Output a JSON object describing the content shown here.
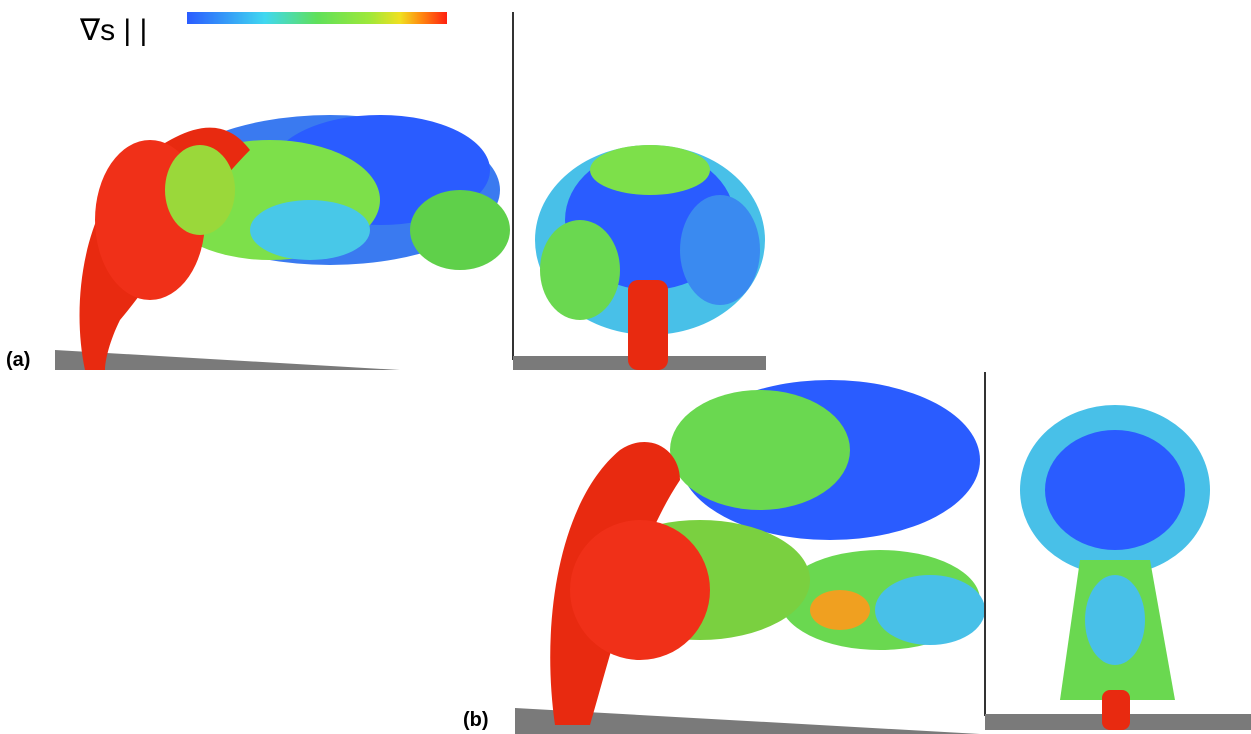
{
  "colorbar": {
    "label": "∇s | |"
  },
  "panels": [
    {
      "label": "(a)"
    },
    {
      "label": "(b)"
    }
  ]
}
